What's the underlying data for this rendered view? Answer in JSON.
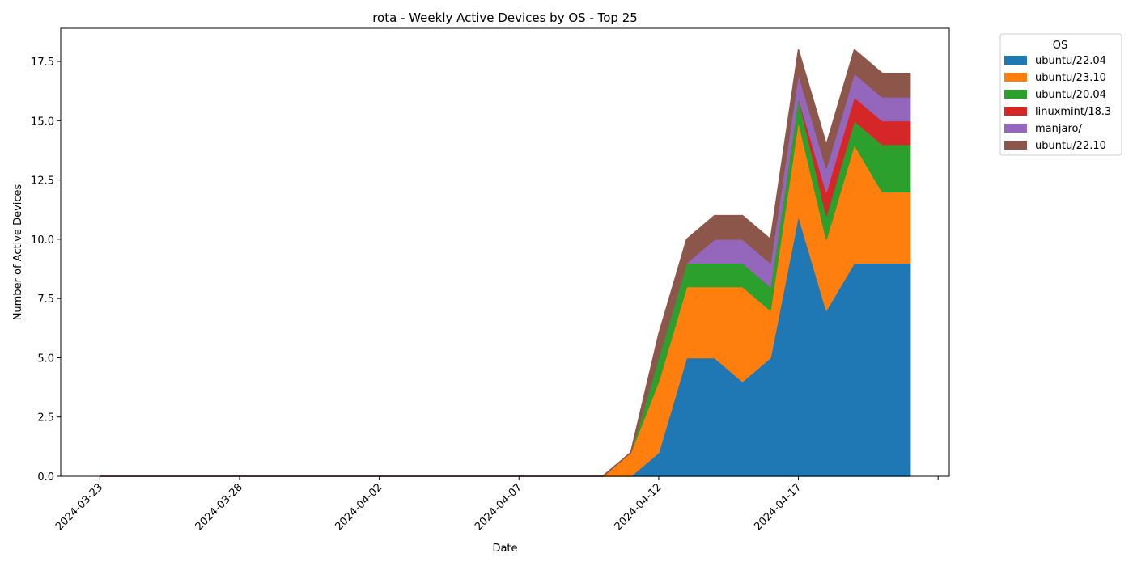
{
  "chart_data": {
    "type": "area",
    "title": "rota - Weekly Active Devices by OS - Top 25",
    "xlabel": "Date",
    "ylabel": "Number of Active Devices",
    "xlim": [
      "2024-03-23",
      "2024-04-21"
    ],
    "ylim": [
      0,
      18.9
    ],
    "x_ticks": [
      "2024-03-23",
      "2024-03-28",
      "2024-04-02",
      "2024-04-07",
      "2024-04-12",
      "2024-04-17",
      ""
    ],
    "y_ticks": [
      "0.0",
      "2.5",
      "5.0",
      "7.5",
      "10.0",
      "12.5",
      "15.0",
      "17.5"
    ],
    "y_tick_values": [
      0,
      2.5,
      5,
      7.5,
      10,
      12.5,
      15,
      17.5
    ],
    "grid": false,
    "stacked": true,
    "legend": {
      "title": "OS",
      "placement": "outside-top-right"
    },
    "x": [
      "2024-03-23",
      "2024-03-24",
      "2024-03-25",
      "2024-03-26",
      "2024-03-27",
      "2024-03-28",
      "2024-03-29",
      "2024-03-30",
      "2024-03-31",
      "2024-04-01",
      "2024-04-02",
      "2024-04-03",
      "2024-04-04",
      "2024-04-05",
      "2024-04-06",
      "2024-04-07",
      "2024-04-08",
      "2024-04-09",
      "2024-04-10",
      "2024-04-11",
      "2024-04-12",
      "2024-04-13",
      "2024-04-14",
      "2024-04-15",
      "2024-04-16",
      "2024-04-17",
      "2024-04-18",
      "2024-04-19",
      "2024-04-20",
      "2024-04-21"
    ],
    "series": [
      {
        "name": "ubuntu/22.04",
        "color": "#1f77b4",
        "values": [
          0,
          0,
          0,
          0,
          0,
          0,
          0,
          0,
          0,
          0,
          0,
          0,
          0,
          0,
          0,
          0,
          0,
          0,
          0,
          0,
          1,
          5,
          5,
          4,
          5,
          11,
          7,
          9,
          9,
          9
        ]
      },
      {
        "name": "ubuntu/23.10",
        "color": "#ff7f0e",
        "values": [
          0,
          0,
          0,
          0,
          0,
          0,
          0,
          0,
          0,
          0,
          0,
          0,
          0,
          0,
          0,
          0,
          0,
          0,
          0,
          1,
          3,
          3,
          3,
          4,
          2,
          4,
          3,
          5,
          3,
          3
        ]
      },
      {
        "name": "ubuntu/20.04",
        "color": "#2ca02c",
        "values": [
          0,
          0,
          0,
          0,
          0,
          0,
          0,
          0,
          0,
          0,
          0,
          0,
          0,
          0,
          0,
          0,
          0,
          0,
          0,
          0,
          1,
          1,
          1,
          1,
          1,
          1,
          1,
          1,
          2,
          2
        ]
      },
      {
        "name": "linuxmint/18.3",
        "color": "#d62728",
        "values": [
          0,
          0,
          0,
          0,
          0,
          0,
          0,
          0,
          0,
          0,
          0,
          0,
          0,
          0,
          0,
          0,
          0,
          0,
          0,
          0,
          0,
          0,
          0,
          0,
          0,
          0,
          1,
          1,
          1,
          1
        ]
      },
      {
        "name": "manjaro/",
        "color": "#9467bd",
        "values": [
          0,
          0,
          0,
          0,
          0,
          0,
          0,
          0,
          0,
          0,
          0,
          0,
          0,
          0,
          0,
          0,
          0,
          0,
          0,
          0,
          0,
          0,
          1,
          1,
          1,
          1,
          1,
          1,
          1,
          1
        ]
      },
      {
        "name": "ubuntu/22.10",
        "color": "#8c564b",
        "values": [
          0,
          0,
          0,
          0,
          0,
          0,
          0,
          0,
          0,
          0,
          0,
          0,
          0,
          0,
          0,
          0,
          0,
          0,
          0,
          0,
          1,
          1,
          1,
          1,
          1,
          1,
          1,
          1,
          1,
          1
        ]
      }
    ]
  }
}
